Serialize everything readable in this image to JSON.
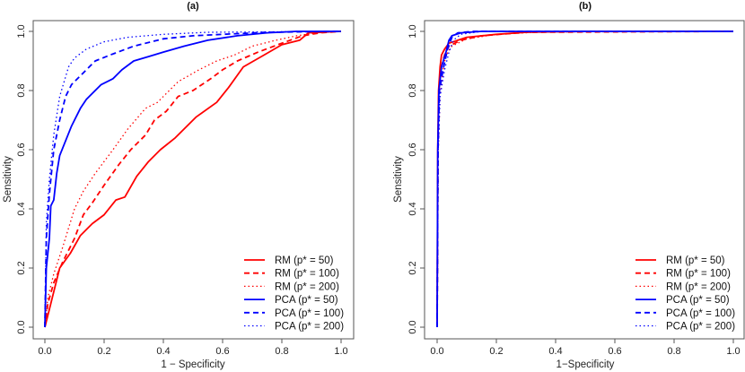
{
  "chart_data": [
    {
      "type": "line",
      "title": "(a)",
      "xlabel": "1 − Specificity",
      "ylabel": "Sensitivity",
      "xlim": [
        0,
        1
      ],
      "ylim": [
        0,
        1
      ],
      "xticks": [
        "0.0",
        "0.2",
        "0.4",
        "0.6",
        "0.8",
        "1.0"
      ],
      "yticks": [
        "0.0",
        "0.2",
        "0.4",
        "0.6",
        "0.8",
        "1.0"
      ],
      "grid": false,
      "legend_position": "bottom-right",
      "series": [
        {
          "name": "RM (p* = 50)",
          "color": "#ff0000",
          "style": "solid",
          "points": [
            [
              0,
              0
            ],
            [
              0.015,
              0.06
            ],
            [
              0.05,
              0.2
            ],
            [
              0.086,
              0.25
            ],
            [
              0.12,
              0.31
            ],
            [
              0.16,
              0.35
            ],
            [
              0.2,
              0.38
            ],
            [
              0.24,
              0.43
            ],
            [
              0.27,
              0.44
            ],
            [
              0.31,
              0.51
            ],
            [
              0.35,
              0.56
            ],
            [
              0.39,
              0.6
            ],
            [
              0.44,
              0.64
            ],
            [
              0.51,
              0.71
            ],
            [
              0.58,
              0.76
            ],
            [
              0.62,
              0.81
            ],
            [
              0.67,
              0.88
            ],
            [
              0.74,
              0.92
            ],
            [
              0.8,
              0.955
            ],
            [
              0.86,
              0.97
            ],
            [
              0.89,
              0.995
            ],
            [
              1,
              1
            ]
          ]
        },
        {
          "name": "RM (p* = 100)",
          "color": "#ff0000",
          "style": "dashed",
          "points": [
            [
              0,
              0
            ],
            [
              0.01,
              0.08
            ],
            [
              0.03,
              0.15
            ],
            [
              0.06,
              0.22
            ],
            [
              0.1,
              0.3
            ],
            [
              0.13,
              0.38
            ],
            [
              0.16,
              0.42
            ],
            [
              0.2,
              0.48
            ],
            [
              0.25,
              0.55
            ],
            [
              0.29,
              0.6
            ],
            [
              0.34,
              0.65
            ],
            [
              0.37,
              0.7
            ],
            [
              0.41,
              0.73
            ],
            [
              0.45,
              0.78
            ],
            [
              0.5,
              0.8
            ],
            [
              0.56,
              0.84
            ],
            [
              0.6,
              0.87
            ],
            [
              0.65,
              0.9
            ],
            [
              0.72,
              0.93
            ],
            [
              0.8,
              0.96
            ],
            [
              0.87,
              0.985
            ],
            [
              0.93,
              0.995
            ],
            [
              1,
              1
            ]
          ]
        },
        {
          "name": "RM (p* = 200)",
          "color": "#ff0000",
          "style": "dotted",
          "points": [
            [
              0,
              0
            ],
            [
              0.01,
              0.1
            ],
            [
              0.03,
              0.18
            ],
            [
              0.06,
              0.27
            ],
            [
              0.1,
              0.4
            ],
            [
              0.13,
              0.46
            ],
            [
              0.17,
              0.52
            ],
            [
              0.2,
              0.56
            ],
            [
              0.23,
              0.6
            ],
            [
              0.28,
              0.67
            ],
            [
              0.34,
              0.74
            ],
            [
              0.38,
              0.76
            ],
            [
              0.45,
              0.83
            ],
            [
              0.52,
              0.87
            ],
            [
              0.58,
              0.9
            ],
            [
              0.64,
              0.92
            ],
            [
              0.7,
              0.95
            ],
            [
              0.78,
              0.97
            ],
            [
              0.85,
              0.985
            ],
            [
              0.92,
              0.995
            ],
            [
              1,
              1
            ]
          ]
        },
        {
          "name": "PCA (p* = 50)",
          "color": "#0000ff",
          "style": "solid",
          "points": [
            [
              0,
              0
            ],
            [
              0.005,
              0.2
            ],
            [
              0.015,
              0.3
            ],
            [
              0.02,
              0.41
            ],
            [
              0.03,
              0.43
            ],
            [
              0.04,
              0.52
            ],
            [
              0.05,
              0.58
            ],
            [
              0.07,
              0.63
            ],
            [
              0.09,
              0.68
            ],
            [
              0.1,
              0.7
            ],
            [
              0.12,
              0.74
            ],
            [
              0.14,
              0.77
            ],
            [
              0.16,
              0.79
            ],
            [
              0.19,
              0.82
            ],
            [
              0.23,
              0.84
            ],
            [
              0.26,
              0.87
            ],
            [
              0.3,
              0.9
            ],
            [
              0.35,
              0.915
            ],
            [
              0.4,
              0.93
            ],
            [
              0.47,
              0.95
            ],
            [
              0.55,
              0.97
            ],
            [
              0.65,
              0.985
            ],
            [
              0.75,
              0.995
            ],
            [
              0.85,
              1
            ],
            [
              1,
              1
            ]
          ]
        },
        {
          "name": "PCA (p* = 100)",
          "color": "#0000ff",
          "style": "dashed",
          "points": [
            [
              0,
              0
            ],
            [
              0.005,
              0.3
            ],
            [
              0.015,
              0.45
            ],
            [
              0.03,
              0.6
            ],
            [
              0.05,
              0.7
            ],
            [
              0.07,
              0.78
            ],
            [
              0.09,
              0.82
            ],
            [
              0.12,
              0.85
            ],
            [
              0.17,
              0.9
            ],
            [
              0.22,
              0.92
            ],
            [
              0.3,
              0.95
            ],
            [
              0.4,
              0.975
            ],
            [
              0.5,
              0.985
            ],
            [
              0.6,
              0.99
            ],
            [
              0.75,
              0.997
            ],
            [
              1,
              1
            ]
          ]
        },
        {
          "name": "PCA (p* = 200)",
          "color": "#0000ff",
          "style": "dotted",
          "points": [
            [
              0,
              0
            ],
            [
              0.005,
              0.35
            ],
            [
              0.015,
              0.5
            ],
            [
              0.03,
              0.65
            ],
            [
              0.05,
              0.78
            ],
            [
              0.08,
              0.88
            ],
            [
              0.1,
              0.91
            ],
            [
              0.14,
              0.94
            ],
            [
              0.2,
              0.965
            ],
            [
              0.28,
              0.98
            ],
            [
              0.4,
              0.99
            ],
            [
              0.55,
              0.997
            ],
            [
              1,
              1
            ]
          ]
        }
      ]
    },
    {
      "type": "line",
      "title": "(b)",
      "xlabel": "1−Specificity",
      "ylabel": "Sensitivity",
      "xlim": [
        0,
        1
      ],
      "ylim": [
        0,
        1
      ],
      "xticks": [
        "0.0",
        "0.2",
        "0.4",
        "0.6",
        "0.8",
        "1.0"
      ],
      "yticks": [
        "0.0",
        "0.2",
        "0.4",
        "0.6",
        "0.8",
        "1.0"
      ],
      "grid": false,
      "legend_position": "bottom-right",
      "series": [
        {
          "name": "RM (p* = 50)",
          "color": "#ff0000",
          "style": "solid",
          "points": [
            [
              0,
              0
            ],
            [
              0.002,
              0.6
            ],
            [
              0.005,
              0.8
            ],
            [
              0.01,
              0.88
            ],
            [
              0.015,
              0.92
            ],
            [
              0.025,
              0.94
            ],
            [
              0.04,
              0.96
            ],
            [
              0.07,
              0.97
            ],
            [
              0.1,
              0.98
            ],
            [
              0.2,
              0.99
            ],
            [
              0.3,
              0.997
            ],
            [
              0.5,
              1
            ],
            [
              1,
              1
            ]
          ]
        },
        {
          "name": "RM (p* = 100)",
          "color": "#ff0000",
          "style": "dashed",
          "points": [
            [
              0,
              0
            ],
            [
              0.003,
              0.6
            ],
            [
              0.007,
              0.8
            ],
            [
              0.015,
              0.88
            ],
            [
              0.025,
              0.92
            ],
            [
              0.04,
              0.95
            ],
            [
              0.08,
              0.97
            ],
            [
              0.15,
              0.985
            ],
            [
              0.3,
              0.997
            ],
            [
              1,
              1
            ]
          ]
        },
        {
          "name": "RM (p* = 200)",
          "color": "#ff0000",
          "style": "dotted",
          "points": [
            [
              0,
              0
            ],
            [
              0.004,
              0.6
            ],
            [
              0.01,
              0.78
            ],
            [
              0.02,
              0.87
            ],
            [
              0.03,
              0.92
            ],
            [
              0.05,
              0.95
            ],
            [
              0.1,
              0.975
            ],
            [
              0.2,
              0.99
            ],
            [
              0.35,
              0.998
            ],
            [
              1,
              1
            ]
          ]
        },
        {
          "name": "PCA (p* = 50)",
          "color": "#0000ff",
          "style": "solid",
          "points": [
            [
              0,
              0
            ],
            [
              0.002,
              0.6
            ],
            [
              0.006,
              0.8
            ],
            [
              0.015,
              0.88
            ],
            [
              0.03,
              0.93
            ],
            [
              0.04,
              0.97
            ],
            [
              0.05,
              0.985
            ],
            [
              0.08,
              0.995
            ],
            [
              0.15,
              1
            ],
            [
              1,
              1
            ]
          ]
        },
        {
          "name": "PCA (p* = 100)",
          "color": "#0000ff",
          "style": "dashed",
          "points": [
            [
              0,
              0
            ],
            [
              0.003,
              0.6
            ],
            [
              0.008,
              0.8
            ],
            [
              0.02,
              0.87
            ],
            [
              0.035,
              0.94
            ],
            [
              0.05,
              0.98
            ],
            [
              0.07,
              0.995
            ],
            [
              0.12,
              1
            ],
            [
              1,
              1
            ]
          ]
        },
        {
          "name": "PCA (p* = 200)",
          "color": "#0000ff",
          "style": "dotted",
          "points": [
            [
              0,
              0
            ],
            [
              0.004,
              0.6
            ],
            [
              0.01,
              0.78
            ],
            [
              0.025,
              0.87
            ],
            [
              0.04,
              0.93
            ],
            [
              0.055,
              0.97
            ],
            [
              0.08,
              0.99
            ],
            [
              0.15,
              1
            ],
            [
              1,
              1
            ]
          ]
        }
      ]
    }
  ]
}
